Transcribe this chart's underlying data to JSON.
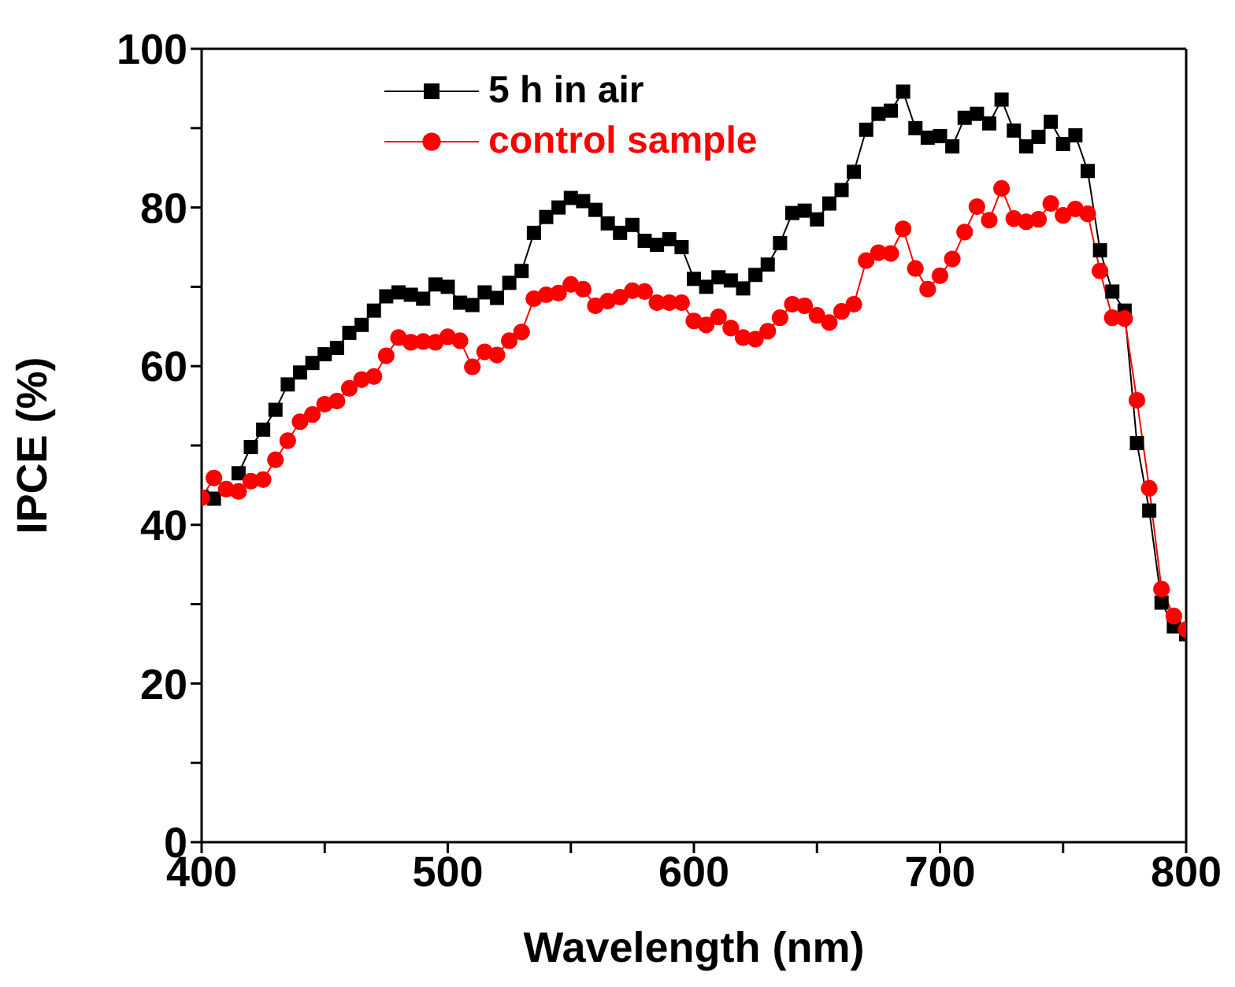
{
  "chart_data": {
    "type": "line",
    "xlabel": "Wavelength (nm)",
    "ylabel": "IPCE (%)",
    "x": [
      400,
      405,
      410,
      415,
      420,
      425,
      430,
      435,
      440,
      445,
      450,
      455,
      460,
      465,
      470,
      475,
      480,
      485,
      490,
      495,
      500,
      505,
      510,
      515,
      520,
      525,
      530,
      535,
      540,
      545,
      550,
      555,
      560,
      565,
      570,
      575,
      580,
      585,
      590,
      595,
      600,
      605,
      610,
      615,
      620,
      625,
      630,
      635,
      640,
      645,
      650,
      655,
      660,
      665,
      670,
      675,
      680,
      685,
      690,
      695,
      700,
      705,
      710,
      715,
      720,
      725,
      730,
      735,
      740,
      745,
      750,
      755,
      760,
      765,
      770,
      775,
      780,
      785,
      790,
      795,
      800
    ],
    "series": [
      {
        "name": "5 h in air",
        "color": "#000000",
        "marker": "square",
        "values": [
          43.5,
          43.3,
          null,
          46.5,
          49.8,
          52,
          54.5,
          57.7,
          59.2,
          60.4,
          61.5,
          62.3,
          64.2,
          65.2,
          67,
          68.8,
          69.3,
          69,
          68.5,
          70.3,
          70,
          68,
          67.7,
          69.3,
          68.6,
          70.5,
          72,
          76.8,
          78.8,
          80,
          81.2,
          80.8,
          79.7,
          78,
          76.8,
          77.8,
          75.8,
          75.3,
          76,
          75,
          71,
          70,
          71.2,
          70.8,
          69.8,
          71.5,
          72.8,
          75.5,
          79.3,
          79.6,
          78.5,
          80.5,
          82.2,
          84.5,
          89.8,
          91.8,
          92.2,
          94.6,
          90,
          88.8,
          89,
          87.7,
          91.3,
          91.8,
          90.6,
          93.6,
          89.7,
          87.7,
          88.9,
          90.8,
          88,
          89.1,
          84.6,
          74.6,
          69.4,
          67,
          50.3,
          41.8,
          30.2,
          27.2,
          26.2
        ]
      },
      {
        "name": "control sample",
        "color": "#ff0000",
        "marker": "circle",
        "values": [
          43.4,
          45.9,
          44.5,
          44.2,
          45.5,
          45.7,
          48.2,
          50.6,
          53,
          53.9,
          55.2,
          55.6,
          57.2,
          58.3,
          58.7,
          61.3,
          63.6,
          63,
          63.1,
          63,
          63.7,
          63.2,
          59.9,
          61.8,
          61.4,
          63.2,
          64.3,
          68.5,
          69,
          69.2,
          70.3,
          69.7,
          67.6,
          68.2,
          68.7,
          69.5,
          69.4,
          68,
          68,
          68,
          65.7,
          65.2,
          66.2,
          64.8,
          63.6,
          63.4,
          64.4,
          66.1,
          67.8,
          67.6,
          66.4,
          65.5,
          66.9,
          67.8,
          73.3,
          74.3,
          74.2,
          77.3,
          72.3,
          69.7,
          71.4,
          73.5,
          76.9,
          80.1,
          78.4,
          82.4,
          78.6,
          78.2,
          78.5,
          80.5,
          79,
          79.8,
          79.2,
          72,
          66.1,
          66,
          55.7,
          44.6,
          31.9,
          28.5,
          26.8
        ]
      }
    ],
    "xlim": [
      400,
      800
    ],
    "xticks": [
      400,
      {
        "value": 450,
        "label": null
      },
      500,
      {
        "value": 550,
        "label": null
      },
      600,
      {
        "value": 650,
        "label": null
      },
      700,
      {
        "value": 750,
        "label": null
      },
      800
    ],
    "ylim": [
      0,
      100
    ],
    "yticks": [
      0,
      {
        "value": 10,
        "label": null
      },
      20,
      {
        "value": 30,
        "label": null
      },
      40,
      {
        "value": 50,
        "label": null
      },
      60,
      {
        "value": 70,
        "label": null
      },
      80,
      {
        "value": 90,
        "label": null
      },
      100
    ],
    "grid": false,
    "legend": "top left",
    "line_style": "solid"
  }
}
